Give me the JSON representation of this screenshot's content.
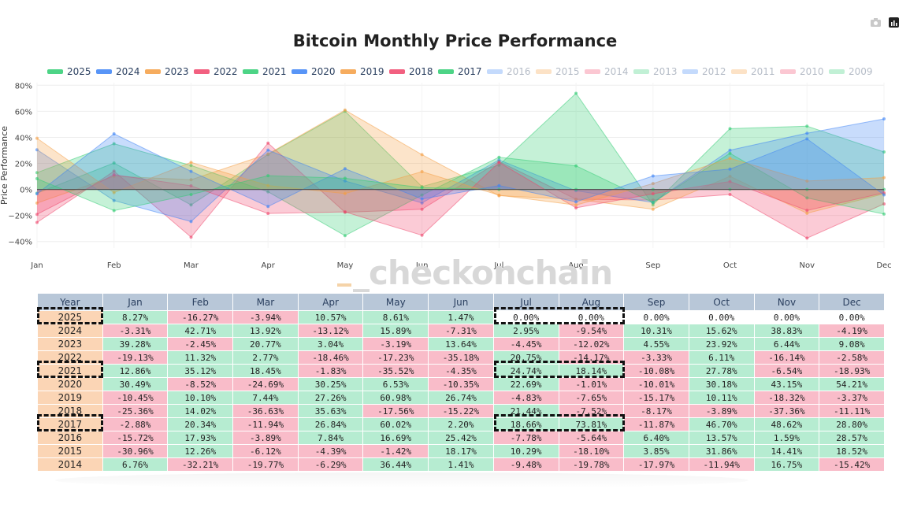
{
  "title": "Bitcoin Monthly Price Performance",
  "watermark": "_checkonchain",
  "chart_data": {
    "type": "area",
    "title": "Bitcoin Monthly Price Performance",
    "ylabel": "Price Performance",
    "xlabel": "",
    "ylim": [
      -45,
      82
    ],
    "yticks": [
      -40,
      -20,
      0,
      20,
      40,
      60,
      80
    ],
    "ytick_labels": [
      "−40%",
      "−20%",
      "0%",
      "20%",
      "40%",
      "60%",
      "80%"
    ],
    "categories": [
      "Jan",
      "Feb",
      "Mar",
      "Apr",
      "May",
      "Jun",
      "Jul",
      "Aug",
      "Sep",
      "Oct",
      "Nov",
      "Dec"
    ],
    "legend": [
      {
        "name": "2025",
        "color": "#2ecc71",
        "active": true
      },
      {
        "name": "2024",
        "color": "#3b82f6",
        "active": true
      },
      {
        "name": "2023",
        "color": "#f59e42",
        "active": true
      },
      {
        "name": "2022",
        "color": "#f0446a",
        "active": true
      },
      {
        "name": "2021",
        "color": "#2ecc71",
        "active": true
      },
      {
        "name": "2020",
        "color": "#3b82f6",
        "active": true
      },
      {
        "name": "2019",
        "color": "#f59e42",
        "active": true
      },
      {
        "name": "2018",
        "color": "#f0446a",
        "active": true
      },
      {
        "name": "2017",
        "color": "#2ecc71",
        "active": true
      },
      {
        "name": "2016",
        "color": "#3b82f6",
        "active": false
      },
      {
        "name": "2015",
        "color": "#f59e42",
        "active": false
      },
      {
        "name": "2014",
        "color": "#f0446a",
        "active": false
      },
      {
        "name": "2013",
        "color": "#2ecc71",
        "active": false
      },
      {
        "name": "2012",
        "color": "#3b82f6",
        "active": false
      },
      {
        "name": "2011",
        "color": "#f59e42",
        "active": false
      },
      {
        "name": "2010",
        "color": "#f0446a",
        "active": false
      },
      {
        "name": "2009",
        "color": "#2ecc71",
        "active": false
      }
    ],
    "series": [
      {
        "name": "2025",
        "color": "#2ecc71",
        "values": [
          8.27,
          -16.27,
          -3.94,
          10.57,
          8.61,
          1.47,
          0.0,
          0.0,
          0.0,
          0.0,
          0.0,
          0.0
        ]
      },
      {
        "name": "2024",
        "color": "#3b82f6",
        "values": [
          -3.31,
          42.71,
          13.92,
          -13.12,
          15.89,
          -7.31,
          2.95,
          -9.54,
          10.31,
          15.62,
          38.83,
          -4.19
        ]
      },
      {
        "name": "2023",
        "color": "#f59e42",
        "values": [
          39.28,
          -2.45,
          20.77,
          3.04,
          -3.19,
          13.64,
          -4.45,
          -12.02,
          4.55,
          23.92,
          6.44,
          9.08
        ]
      },
      {
        "name": "2022",
        "color": "#f0446a",
        "values": [
          -19.13,
          11.32,
          2.77,
          -18.46,
          -17.23,
          -35.18,
          20.75,
          -14.17,
          -3.33,
          6.11,
          -16.14,
          -2.58
        ]
      },
      {
        "name": "2021",
        "color": "#2ecc71",
        "values": [
          12.86,
          35.12,
          18.45,
          -1.83,
          -35.52,
          -4.35,
          24.74,
          18.14,
          -10.08,
          27.78,
          -6.54,
          -18.93
        ]
      },
      {
        "name": "2020",
        "color": "#3b82f6",
        "values": [
          30.49,
          -8.52,
          -24.69,
          30.25,
          6.53,
          -10.35,
          22.69,
          -1.01,
          -10.01,
          30.18,
          43.15,
          54.21
        ]
      },
      {
        "name": "2019",
        "color": "#f59e42",
        "values": [
          -10.45,
          10.1,
          7.44,
          27.26,
          60.98,
          26.74,
          -4.83,
          -7.65,
          -15.17,
          10.11,
          -18.32,
          -3.37
        ]
      },
      {
        "name": "2018",
        "color": "#f0446a",
        "values": [
          -25.36,
          14.02,
          -36.63,
          35.63,
          -17.56,
          -15.22,
          21.44,
          -7.52,
          -8.17,
          -3.89,
          -37.36,
          -11.11
        ]
      },
      {
        "name": "2017",
        "color": "#2ecc71",
        "values": [
          -2.88,
          20.34,
          -11.94,
          26.84,
          60.02,
          2.2,
          18.66,
          73.81,
          -11.87,
          46.7,
          48.62,
          28.8
        ]
      }
    ]
  },
  "table": {
    "headers": [
      "Year",
      "Jan",
      "Feb",
      "Mar",
      "Apr",
      "May",
      "Jun",
      "Jul",
      "Aug",
      "Sep",
      "Oct",
      "Nov",
      "Dec"
    ],
    "rows": [
      {
        "year": "2025",
        "cells": [
          "8.27%",
          "-16.27%",
          "-3.94%",
          "10.57%",
          "8.61%",
          "1.47%",
          "0.00%",
          "0.00%",
          "0.00%",
          "0.00%",
          "0.00%",
          "0.00%"
        ]
      },
      {
        "year": "2024",
        "cells": [
          "-3.31%",
          "42.71%",
          "13.92%",
          "-13.12%",
          "15.89%",
          "-7.31%",
          "2.95%",
          "-9.54%",
          "10.31%",
          "15.62%",
          "38.83%",
          "-4.19%"
        ]
      },
      {
        "year": "2023",
        "cells": [
          "39.28%",
          "-2.45%",
          "20.77%",
          "3.04%",
          "-3.19%",
          "13.64%",
          "-4.45%",
          "-12.02%",
          "4.55%",
          "23.92%",
          "6.44%",
          "9.08%"
        ]
      },
      {
        "year": "2022",
        "cells": [
          "-19.13%",
          "11.32%",
          "2.77%",
          "-18.46%",
          "-17.23%",
          "-35.18%",
          "20.75%",
          "-14.17%",
          "-3.33%",
          "6.11%",
          "-16.14%",
          "-2.58%"
        ]
      },
      {
        "year": "2021",
        "cells": [
          "12.86%",
          "35.12%",
          "18.45%",
          "-1.83%",
          "-35.52%",
          "-4.35%",
          "24.74%",
          "18.14%",
          "-10.08%",
          "27.78%",
          "-6.54%",
          "-18.93%"
        ]
      },
      {
        "year": "2020",
        "cells": [
          "30.49%",
          "-8.52%",
          "-24.69%",
          "30.25%",
          "6.53%",
          "-10.35%",
          "22.69%",
          "-1.01%",
          "-10.01%",
          "30.18%",
          "43.15%",
          "54.21%"
        ]
      },
      {
        "year": "2019",
        "cells": [
          "-10.45%",
          "10.10%",
          "7.44%",
          "27.26%",
          "60.98%",
          "26.74%",
          "-4.83%",
          "-7.65%",
          "-15.17%",
          "10.11%",
          "-18.32%",
          "-3.37%"
        ]
      },
      {
        "year": "2018",
        "cells": [
          "-25.36%",
          "14.02%",
          "-36.63%",
          "35.63%",
          "-17.56%",
          "-15.22%",
          "21.44%",
          "-7.52%",
          "-8.17%",
          "-3.89%",
          "-37.36%",
          "-11.11%"
        ]
      },
      {
        "year": "2017",
        "cells": [
          "-2.88%",
          "20.34%",
          "-11.94%",
          "26.84%",
          "60.02%",
          "2.20%",
          "18.66%",
          "73.81%",
          "-11.87%",
          "46.70%",
          "48.62%",
          "28.80%"
        ]
      },
      {
        "year": "2016",
        "cells": [
          "-15.72%",
          "17.93%",
          "-3.89%",
          "7.84%",
          "16.69%",
          "25.42%",
          "-7.78%",
          "-5.64%",
          "6.40%",
          "13.57%",
          "1.59%",
          "28.57%"
        ]
      },
      {
        "year": "2015",
        "cells": [
          "-30.96%",
          "12.26%",
          "-6.12%",
          "-4.39%",
          "-1.42%",
          "18.17%",
          "10.29%",
          "-18.10%",
          "3.85%",
          "31.86%",
          "14.41%",
          "18.52%"
        ]
      },
      {
        "year": "2014",
        "cells": [
          "6.76%",
          "-32.21%",
          "-19.77%",
          "-6.29%",
          "36.44%",
          "1.41%",
          "-9.48%",
          "-19.78%",
          "-17.97%",
          "-11.94%",
          "16.75%",
          "-15.42%"
        ]
      }
    ]
  },
  "colors": {
    "positive": "#b6ecd1",
    "negative": "#f9bcc9",
    "year_cell": "#fbd5b5",
    "header": "#b8c7d8"
  }
}
